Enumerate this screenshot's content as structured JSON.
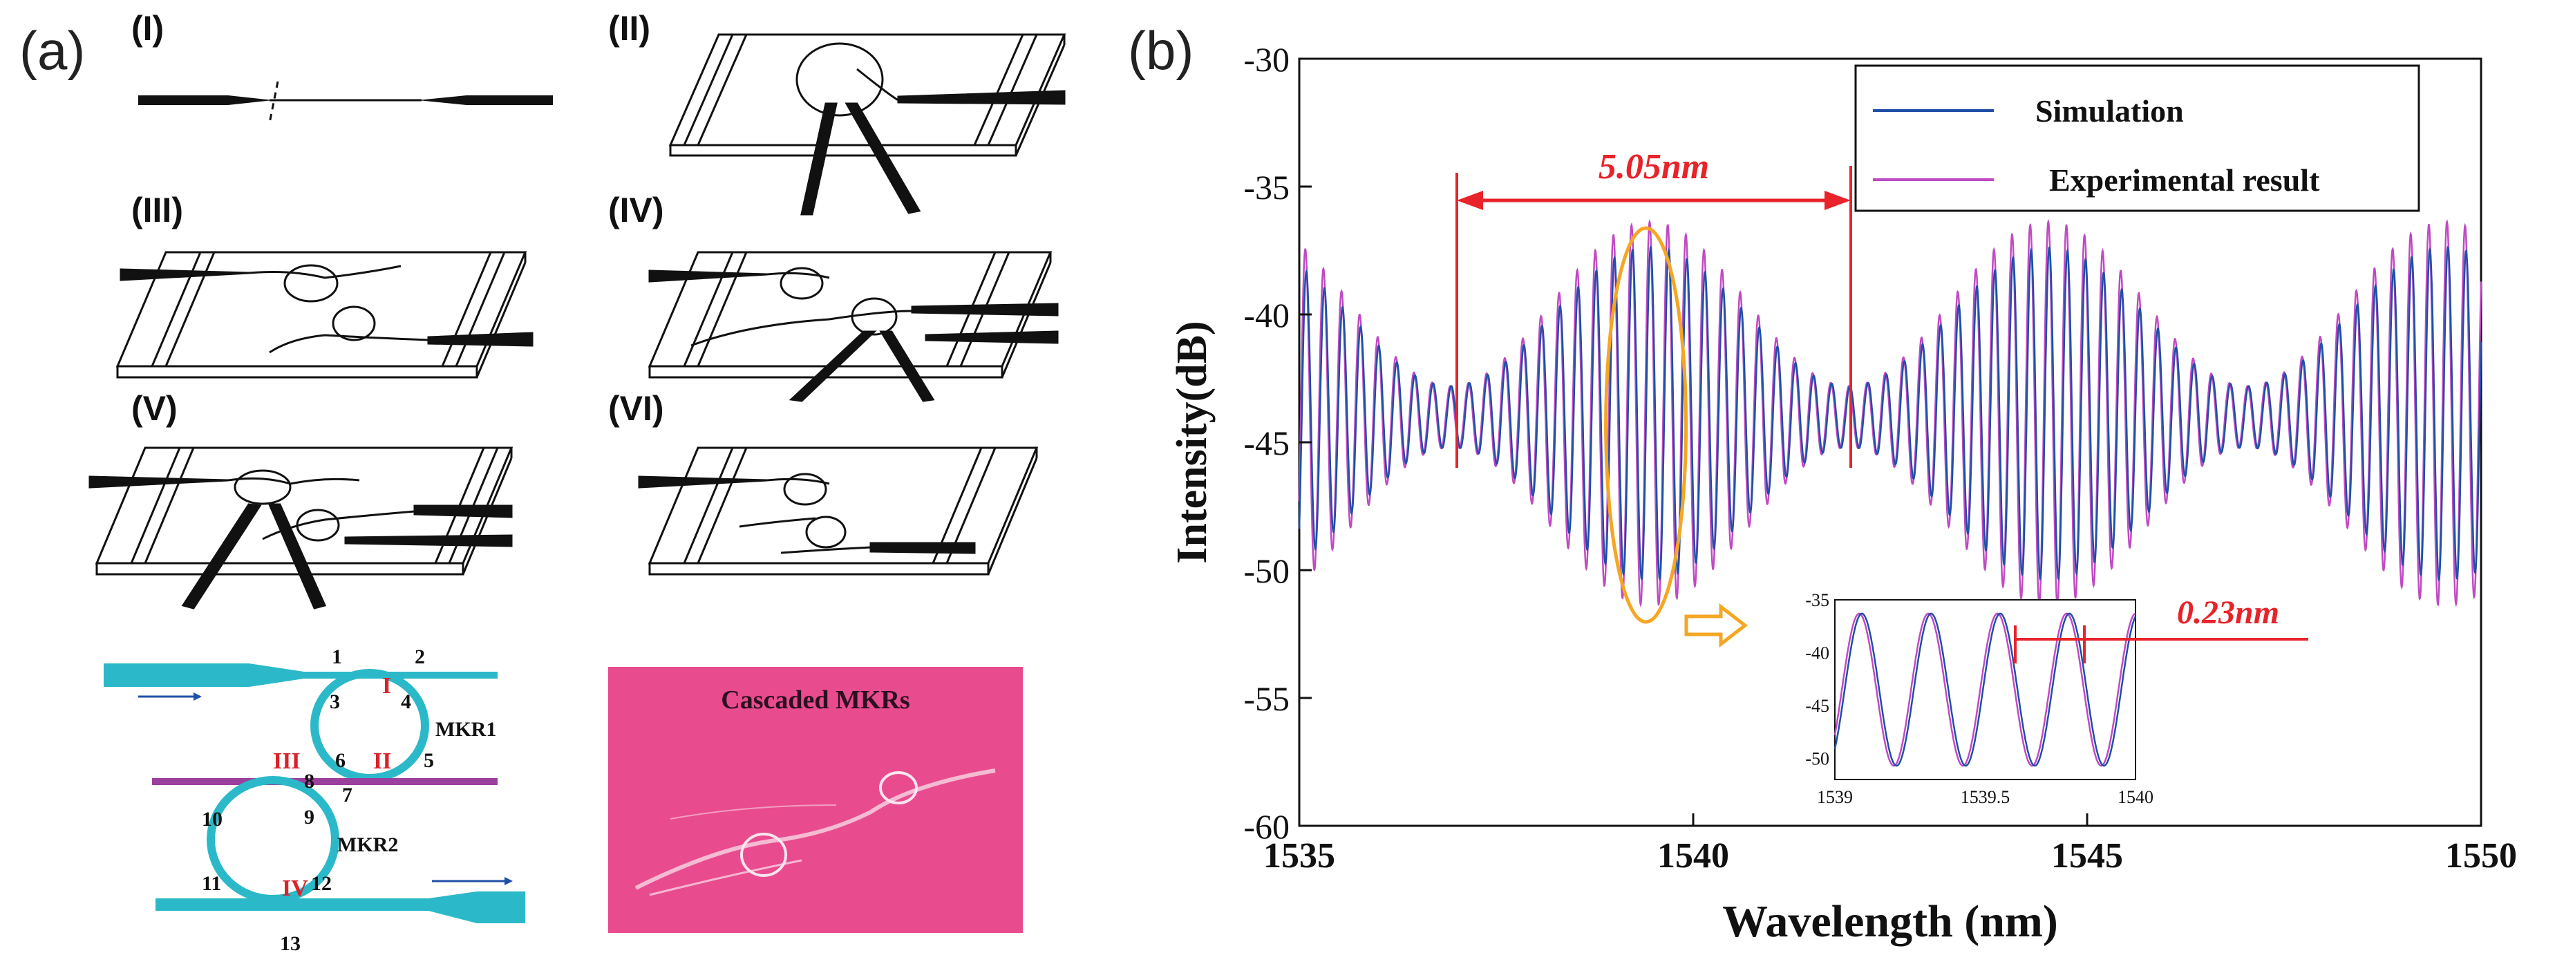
{
  "panel_a": {
    "label": "(a)",
    "steps": [
      "(I)",
      "(II)",
      "(III)",
      "(IV)",
      "(V)",
      "(VI)"
    ],
    "diagram": {
      "ring_labels": [
        "MKR1",
        "MKR2"
      ],
      "node_numbers": [
        "1",
        "2",
        "3",
        "4",
        "5",
        "6",
        "7",
        "8",
        "9",
        "10",
        "11",
        "12",
        "13"
      ],
      "roman_marks": [
        "I",
        "II",
        "III",
        "IV"
      ]
    },
    "photo_caption": "Cascaded MKRs",
    "colors": {
      "fiber": "#2bb9c9",
      "middle_fiber": "#9a3f9e",
      "marks": "#d8232a",
      "photo_bg": "#e94b8f"
    }
  },
  "panel_b": {
    "label": "(b)"
  },
  "chart_data": {
    "type": "line",
    "xlabel": "Wavelength (nm)",
    "ylabel": "Intensity(dB)",
    "xlim": [
      1535,
      1550
    ],
    "ylim": [
      -60,
      -30
    ],
    "xticks": [
      1535,
      1540,
      1545,
      1550
    ],
    "yticks": [
      -30,
      -35,
      -40,
      -45,
      -50,
      -55,
      -60
    ],
    "grid": false,
    "legend_position": "top-right",
    "series": [
      {
        "name": "Simulation",
        "color": "#1f4fa8",
        "fringe_period_nm": 0.23,
        "envelope_period_nm": 5.05,
        "peak_max_db": -37,
        "trough_min_db": -50,
        "envelope_midline_db": -44
      },
      {
        "name": "Experimental result",
        "color": "#c04ac4",
        "fringe_period_nm": 0.23,
        "envelope_period_nm": 5.05,
        "peak_max_db": -36,
        "trough_min_db": -51,
        "envelope_midline_db": -44
      }
    ],
    "annotations": {
      "fsr_large": {
        "text": "5.05nm",
        "from_nm": 1537.0,
        "to_nm": 1542.0,
        "color": "#e8232a"
      },
      "highlight_ellipse_center_nm": 1539.4,
      "arrow_color": "#f5a623"
    },
    "inset": {
      "xlim": [
        1539,
        1540
      ],
      "ylim": [
        -52,
        -35
      ],
      "xticks": [
        1539,
        1539.5,
        1540
      ],
      "yticks": [
        -35,
        -40,
        -45,
        -50
      ],
      "fringe_period_nm": 0.23,
      "annotation": {
        "text": "0.23nm",
        "from_nm": 1539.6,
        "to_nm": 1539.83,
        "color": "#e8232a"
      }
    }
  }
}
